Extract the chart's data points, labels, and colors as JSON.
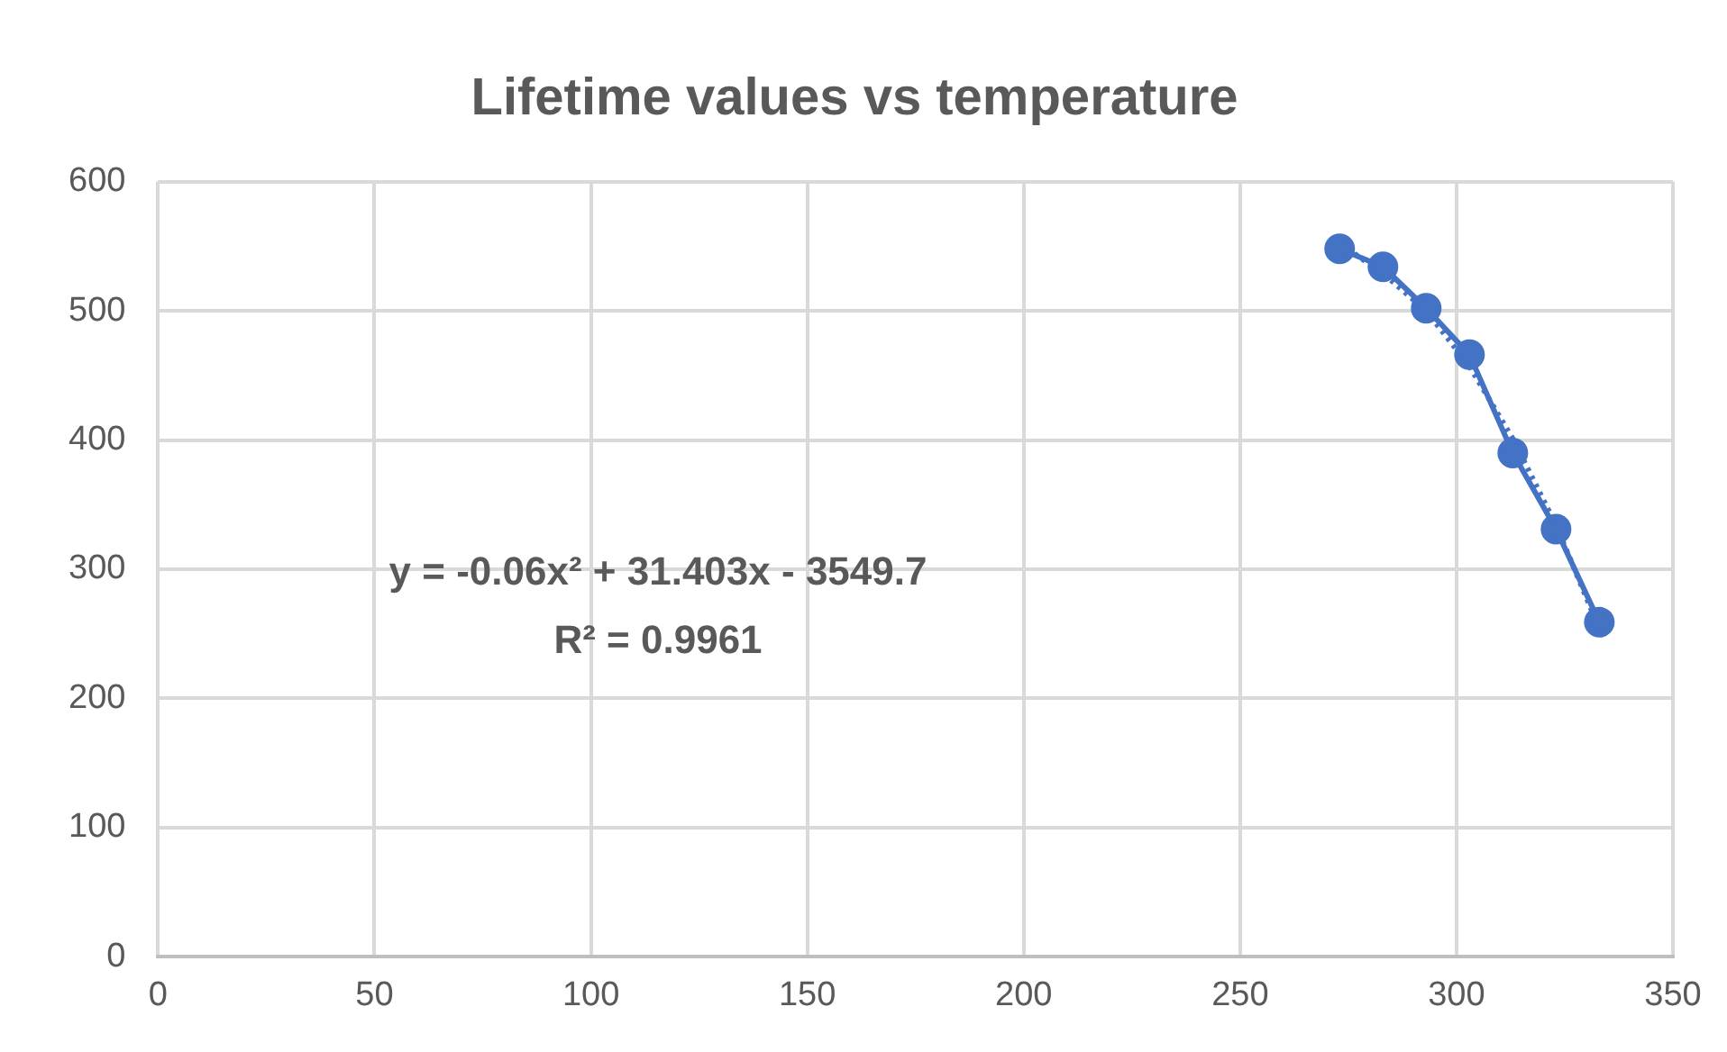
{
  "chart_data": {
    "type": "scatter",
    "title": "Lifetime values vs temperature",
    "series": [
      {
        "type": "line",
        "color": "#4472c4",
        "x": [
          273,
          283,
          293,
          303,
          313,
          323,
          333
        ],
        "values": [
          548,
          534,
          502,
          466,
          390,
          331,
          259
        ],
        "marker": "circle",
        "line_style": "solid"
      },
      {
        "type": "line",
        "color": "#4472c4",
        "x": [
          273,
          283,
          293,
          303,
          313,
          323,
          333
        ],
        "values": [
          552,
          529,
          500,
          457,
          401,
          334,
          254
        ],
        "marker": "none",
        "line_style": "dotted"
      }
    ],
    "xlim": [
      0,
      350
    ],
    "xticks": [
      0,
      50,
      100,
      150,
      200,
      250,
      300,
      350
    ],
    "ylim": [
      0,
      600
    ],
    "yticks": [
      0,
      100,
      200,
      300,
      400,
      500,
      600
    ],
    "grid": true,
    "legend": false,
    "annotations": [
      "y = -0.06x² + 31.403x - 3549.7",
      "R² = 0.9961"
    ]
  }
}
